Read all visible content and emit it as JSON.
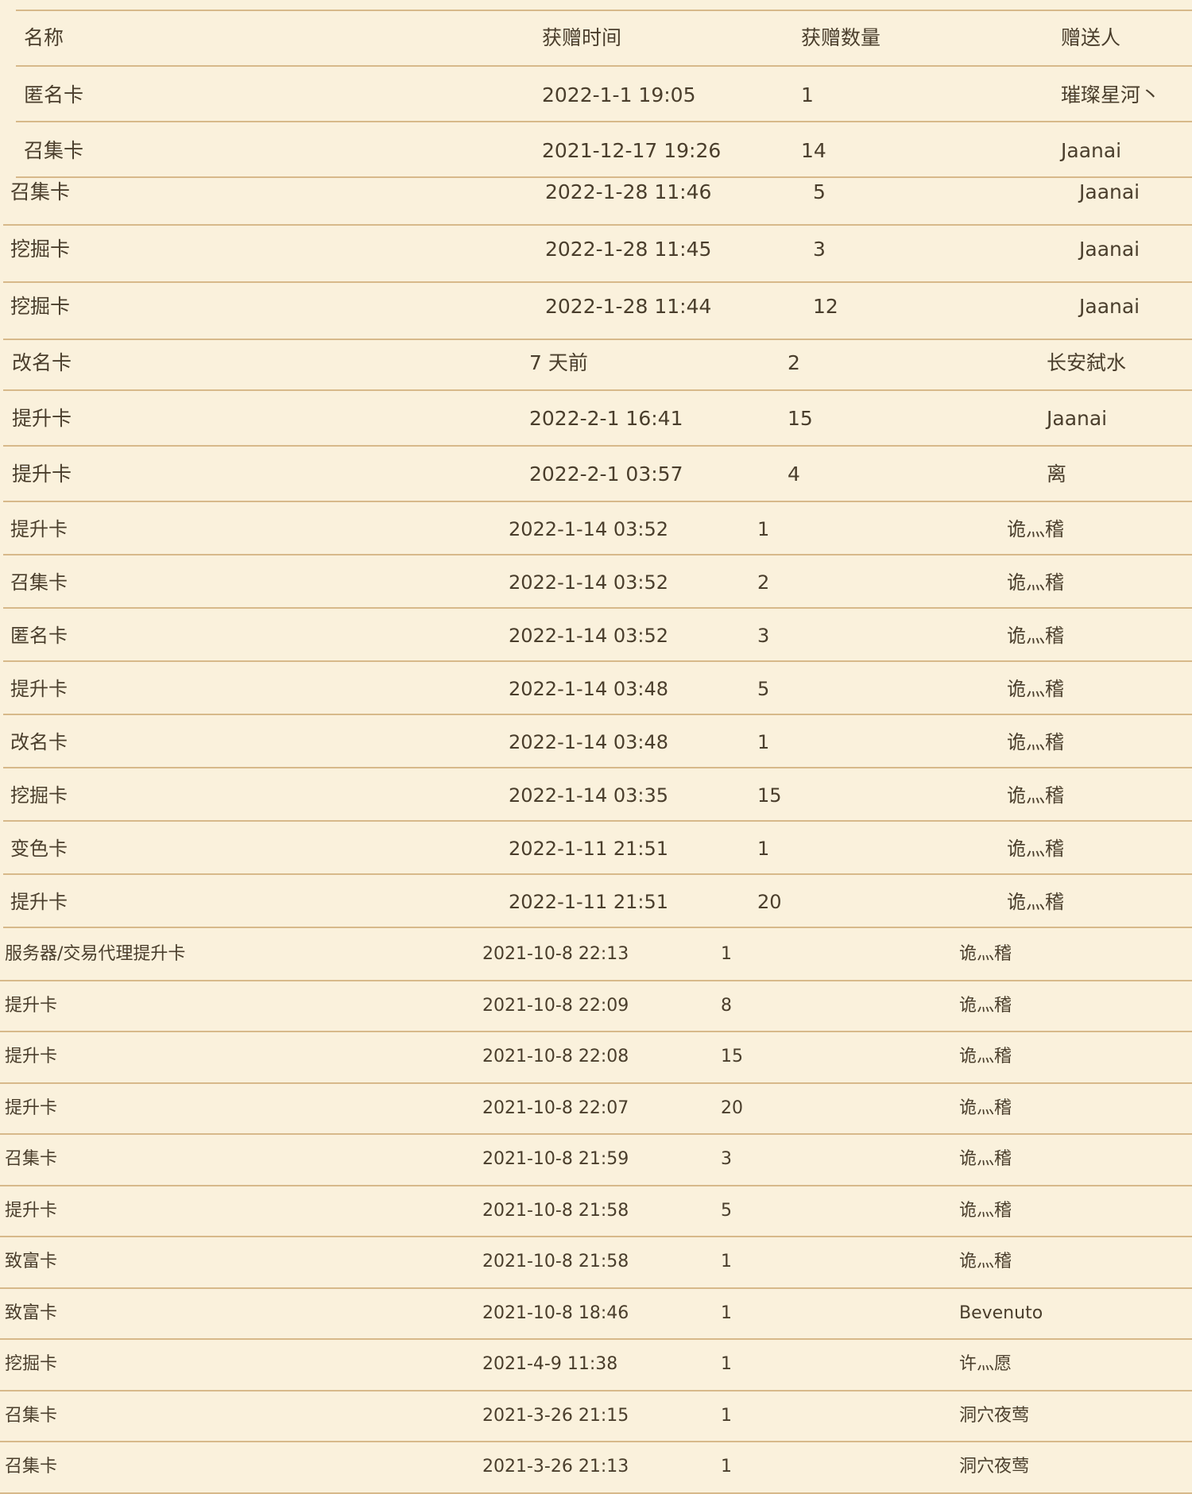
{
  "header": {
    "name_label": "名称",
    "time_label": "获赠时间",
    "count_label": "获赠数量",
    "sender_label": "赠送人"
  },
  "segment_a_rows": [
    {
      "name": "匿名卡",
      "time": "2022-1-1 19:05",
      "count": "1",
      "sender": "璀璨星河丶"
    },
    {
      "name": "召集卡",
      "time": "2021-12-17 19:26",
      "count": "14",
      "sender": "Jaanai"
    }
  ],
  "segment_b_rows": [
    {
      "name": "召集卡",
      "time": "2022-1-28 11:46",
      "count": "5",
      "sender": "Jaanai"
    },
    {
      "name": "挖掘卡",
      "time": "2022-1-28 11:45",
      "count": "3",
      "sender": "Jaanai"
    },
    {
      "name": "挖掘卡",
      "time": "2022-1-28 11:44",
      "count": "12",
      "sender": "Jaanai"
    }
  ],
  "segment_c_rows": [
    {
      "name": "改名卡",
      "time": "7 天前",
      "count": "2",
      "sender": "长安弑水"
    },
    {
      "name": "提升卡",
      "time": "2022-2-1 16:41",
      "count": "15",
      "sender": "Jaanai"
    },
    {
      "name": "提升卡",
      "time": "2022-2-1 03:57",
      "count": "4",
      "sender": "离"
    }
  ],
  "segment_d_rows": [
    {
      "name": "提升卡",
      "time": "2022-1-14 03:52",
      "count": "1",
      "sender": "诡灬稽"
    },
    {
      "name": "召集卡",
      "time": "2022-1-14 03:52",
      "count": "2",
      "sender": "诡灬稽"
    },
    {
      "name": "匿名卡",
      "time": "2022-1-14 03:52",
      "count": "3",
      "sender": "诡灬稽"
    },
    {
      "name": "提升卡",
      "time": "2022-1-14 03:48",
      "count": "5",
      "sender": "诡灬稽"
    },
    {
      "name": "改名卡",
      "time": "2022-1-14 03:48",
      "count": "1",
      "sender": "诡灬稽"
    },
    {
      "name": "挖掘卡",
      "time": "2022-1-14 03:35",
      "count": "15",
      "sender": "诡灬稽"
    },
    {
      "name": "变色卡",
      "time": "2022-1-11 21:51",
      "count": "1",
      "sender": "诡灬稽"
    },
    {
      "name": "提升卡",
      "time": "2022-1-11 21:51",
      "count": "20",
      "sender": "诡灬稽"
    }
  ],
  "segment_e_rows": [
    {
      "name": "服务器/交易代理提升卡",
      "time": "2021-10-8 22:13",
      "count": "1",
      "sender": "诡灬稽"
    },
    {
      "name": "提升卡",
      "time": "2021-10-8 22:09",
      "count": "8",
      "sender": "诡灬稽"
    },
    {
      "name": "提升卡",
      "time": "2021-10-8 22:08",
      "count": "15",
      "sender": "诡灬稽"
    },
    {
      "name": "提升卡",
      "time": "2021-10-8 22:07",
      "count": "20",
      "sender": "诡灬稽"
    },
    {
      "name": "召集卡",
      "time": "2021-10-8 21:59",
      "count": "3",
      "sender": "诡灬稽"
    },
    {
      "name": "提升卡",
      "time": "2021-10-8 21:58",
      "count": "5",
      "sender": "诡灬稽"
    },
    {
      "name": "致富卡",
      "time": "2021-10-8 21:58",
      "count": "1",
      "sender": "诡灬稽"
    },
    {
      "name": "致富卡",
      "time": "2021-10-8 18:46",
      "count": "1",
      "sender": "Bevenuto"
    },
    {
      "name": "挖掘卡",
      "time": "2021-4-9 11:38",
      "count": "1",
      "sender": "许灬愿"
    },
    {
      "name": "召集卡",
      "time": "2021-3-26 21:15",
      "count": "1",
      "sender": "洞穴夜莺"
    },
    {
      "name": "召集卡",
      "time": "2021-3-26 21:13",
      "count": "1",
      "sender": "洞穴夜莺"
    }
  ]
}
